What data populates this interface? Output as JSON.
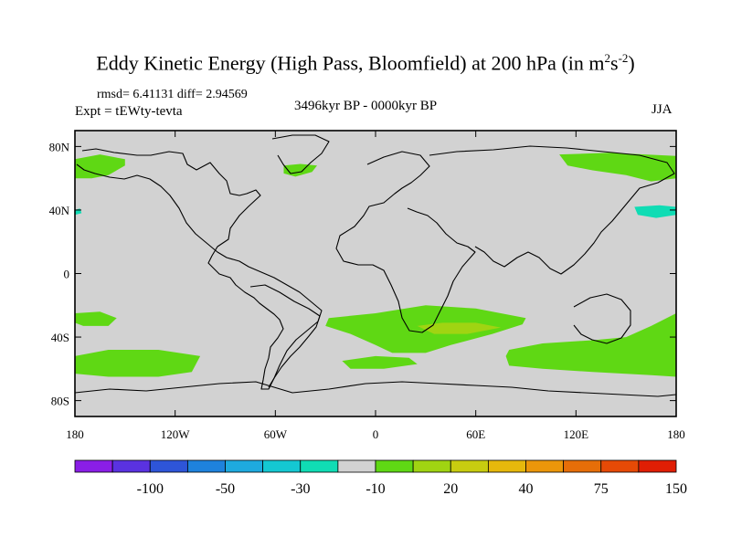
{
  "title": "Eddy Kinetic Energy (High Pass, Bloomfield) at 200 hPa (in m",
  "title_unit_sup1": "2",
  "title_unit_mid": "s",
  "title_unit_sup2": "-2",
  "title_unit_end": ")",
  "stats": "rmsd= 6.41131  diff= 2.94569",
  "experiment": "Expt = tEWty-tevta",
  "period": "3496kyr BP - 0000kyr BP",
  "season": "JJA",
  "chart_data": {
    "type": "heatmap",
    "projection": "equirectangular",
    "lon_range": [
      -180,
      180
    ],
    "lat_range": [
      -90,
      90
    ],
    "x_ticks": [
      {
        "lon": -180,
        "label": "180"
      },
      {
        "lon": -120,
        "label": "120W"
      },
      {
        "lon": -60,
        "label": "60W"
      },
      {
        "lon": 0,
        "label": "0"
      },
      {
        "lon": 60,
        "label": "60E"
      },
      {
        "lon": 120,
        "label": "120E"
      },
      {
        "lon": 180,
        "label": "180"
      }
    ],
    "y_ticks": [
      {
        "lat": 80,
        "label": "80N"
      },
      {
        "lat": 40,
        "label": "40N"
      },
      {
        "lat": 0,
        "label": "0"
      },
      {
        "lat": -40,
        "label": "40S"
      },
      {
        "lat": -80,
        "label": "80S"
      }
    ],
    "colorbar": {
      "colors": [
        "#8a1ee6",
        "#5a32e0",
        "#2e55d8",
        "#1e82dc",
        "#1eaade",
        "#14c8d2",
        "#10dcb4",
        "#d2d2d2",
        "#5fd814",
        "#a0d412",
        "#c8cc10",
        "#e6b80c",
        "#eb960a",
        "#e66e08",
        "#e64a06",
        "#e01e04"
      ],
      "labels": [
        {
          "after_index": 1,
          "label": "-100"
        },
        {
          "after_index": 3,
          "label": "-50"
        },
        {
          "after_index": 5,
          "label": "-30"
        },
        {
          "after_index": 7,
          "label": "-10"
        },
        {
          "after_index": 9,
          "label": "20"
        },
        {
          "after_index": 11,
          "label": "40"
        },
        {
          "after_index": 13,
          "label": "75"
        },
        {
          "after_index": 15,
          "label": "150"
        }
      ]
    },
    "background_color": "#d2d2d2",
    "anomaly_regions": [
      {
        "name": "north-pacific-atlantic-west",
        "color": "#5fd814",
        "points": [
          [
            -180,
            72
          ],
          [
            -165,
            75
          ],
          [
            -150,
            72
          ],
          [
            -150,
            68
          ],
          [
            -160,
            62
          ],
          [
            -170,
            60
          ],
          [
            -180,
            60
          ]
        ]
      },
      {
        "name": "greenland-atlantic",
        "color": "#5fd814",
        "points": [
          [
            -55,
            68
          ],
          [
            -45,
            69
          ],
          [
            -35,
            68
          ],
          [
            -38,
            64
          ],
          [
            -48,
            61
          ],
          [
            -55,
            63
          ]
        ]
      },
      {
        "name": "north-pacific-east-asia",
        "color": "#5fd814",
        "points": [
          [
            110,
            75
          ],
          [
            140,
            76
          ],
          [
            180,
            74
          ],
          [
            180,
            60
          ],
          [
            165,
            58
          ],
          [
            150,
            62
          ],
          [
            130,
            65
          ],
          [
            115,
            68
          ]
        ]
      },
      {
        "name": "west-pacific-cyan",
        "color": "#10dcb4",
        "points": [
          [
            155,
            42
          ],
          [
            170,
            43
          ],
          [
            180,
            42
          ],
          [
            180,
            37
          ],
          [
            168,
            35
          ],
          [
            157,
            37
          ]
        ]
      },
      {
        "name": "west-edge-cyan",
        "color": "#10dcb4",
        "points": [
          [
            -180,
            40
          ],
          [
            -177,
            41
          ],
          [
            -176,
            38
          ],
          [
            -180,
            37
          ]
        ]
      },
      {
        "name": "south-pacific-small",
        "color": "#5fd814",
        "points": [
          [
            -180,
            -25
          ],
          [
            -165,
            -24
          ],
          [
            -155,
            -28
          ],
          [
            -160,
            -33
          ],
          [
            -175,
            -33
          ],
          [
            -180,
            -31
          ]
        ]
      },
      {
        "name": "south-pacific-large",
        "color": "#5fd814",
        "points": [
          [
            -180,
            -52
          ],
          [
            -160,
            -48
          ],
          [
            -130,
            -48
          ],
          [
            -105,
            -52
          ],
          [
            -110,
            -62
          ],
          [
            -130,
            -65
          ],
          [
            -160,
            -65
          ],
          [
            -180,
            -63
          ]
        ]
      },
      {
        "name": "south-atlantic-indian",
        "color": "#5fd814",
        "points": [
          [
            -28,
            -28
          ],
          [
            0,
            -25
          ],
          [
            30,
            -20
          ],
          [
            60,
            -22
          ],
          [
            90,
            -28
          ],
          [
            88,
            -32
          ],
          [
            70,
            -38
          ],
          [
            45,
            -45
          ],
          [
            30,
            -50
          ],
          [
            10,
            -50
          ],
          [
            0,
            -45
          ],
          [
            -15,
            -38
          ],
          [
            -30,
            -33
          ]
        ]
      },
      {
        "name": "south-atlantic-lower",
        "color": "#5fd814",
        "points": [
          [
            -20,
            -55
          ],
          [
            0,
            -52
          ],
          [
            20,
            -53
          ],
          [
            25,
            -57
          ],
          [
            5,
            -60
          ],
          [
            -15,
            -60
          ]
        ]
      },
      {
        "name": "south-indian-core",
        "color": "#a0d412",
        "points": [
          [
            25,
            -33
          ],
          [
            40,
            -31
          ],
          [
            60,
            -31
          ],
          [
            75,
            -34
          ],
          [
            55,
            -38
          ],
          [
            35,
            -38
          ]
        ]
      },
      {
        "name": "south-indian-pacific",
        "color": "#5fd814",
        "points": [
          [
            80,
            -48
          ],
          [
            100,
            -44
          ],
          [
            130,
            -42
          ],
          [
            150,
            -40
          ],
          [
            165,
            -33
          ],
          [
            180,
            -25
          ],
          [
            180,
            -65
          ],
          [
            165,
            -64
          ],
          [
            130,
            -62
          ],
          [
            100,
            -60
          ],
          [
            80,
            -58
          ],
          [
            78,
            -52
          ]
        ]
      }
    ]
  }
}
